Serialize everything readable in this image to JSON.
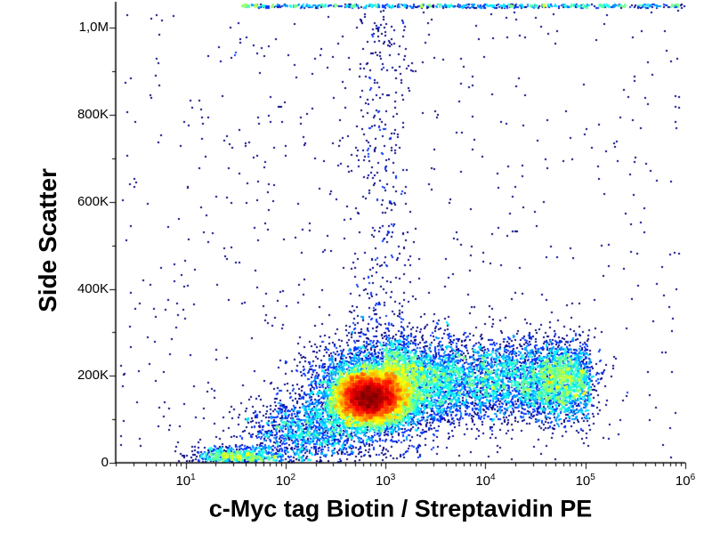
{
  "style": {
    "background": "#ffffff",
    "axis_color": "#000000",
    "text_color": "#000000",
    "colormap": "jet"
  },
  "chart_data": {
    "type": "scatter",
    "subtype": "flow-cytometry-pseudocolor-density",
    "title": "",
    "xlabel": "c-Myc tag Biotin / Streptavidin PE",
    "ylabel": "Side Scatter",
    "x_scale": "log10",
    "x_range_log10": [
      0.3,
      6.0
    ],
    "x_major_ticks": [
      {
        "base": "10",
        "exp": "1"
      },
      {
        "base": "10",
        "exp": "2"
      },
      {
        "base": "10",
        "exp": "3"
      },
      {
        "base": "10",
        "exp": "4"
      },
      {
        "base": "10",
        "exp": "5"
      },
      {
        "base": "10",
        "exp": "6"
      }
    ],
    "y_scale": "linear",
    "y_range": [
      0,
      1060000
    ],
    "y_ticks": [
      {
        "value": 0,
        "label": "0"
      },
      {
        "value": 200000,
        "label": "200K"
      },
      {
        "value": 400000,
        "label": "400K"
      },
      {
        "value": 600000,
        "label": "600K"
      },
      {
        "value": 800000,
        "label": "800K"
      },
      {
        "value": 1000000,
        "label": "1,0M"
      }
    ],
    "grid": false,
    "legend": false,
    "populations": [
      {
        "name": "debris-low-left",
        "kind": "gauss2d",
        "logx_mean": 1.5,
        "logx_sd": 0.24,
        "y_mean": 14000,
        "y_sd": 11000,
        "count": 800
      },
      {
        "name": "bridge",
        "kind": "gauss2d",
        "logx_mean": 2.2,
        "logx_sd": 0.3,
        "y_mean": 70000,
        "y_sd": 40000,
        "count": 1300
      },
      {
        "name": "main-core",
        "kind": "gauss2d",
        "logx_mean": 2.83,
        "logx_sd": 0.17,
        "y_mean": 150000,
        "y_sd": 30000,
        "count": 9000
      },
      {
        "name": "main-halo",
        "kind": "gauss2d",
        "logx_mean": 2.9,
        "logx_sd": 0.35,
        "y_mean": 170000,
        "y_sd": 60000,
        "count": 3500
      },
      {
        "name": "right-band",
        "kind": "band",
        "logx_min": 3.0,
        "logx_max": 5.05,
        "power": 1.25,
        "y_mean": 190000,
        "y_sd": 48000,
        "count": 5200
      },
      {
        "name": "right-edge-cluster",
        "kind": "gauss2d",
        "logx_mean": 4.75,
        "logx_sd": 0.18,
        "y_mean": 190000,
        "y_sd": 45000,
        "count": 1200
      },
      {
        "name": "vertical-streak",
        "kind": "streak",
        "logx_mean": 2.95,
        "logx_sd": 0.16,
        "y_min": 250000,
        "y_max": 1040000,
        "count": 380
      },
      {
        "name": "background-sparse",
        "kind": "uniform",
        "logx_min": 0.35,
        "logx_max": 5.95,
        "y_min": 0,
        "y_max": 1040000,
        "count": 650
      },
      {
        "name": "clipped-top-band",
        "kind": "clipped-top",
        "y_value": 1050000,
        "logx_min": 1.55,
        "logx_max": 6.0,
        "count": 700
      }
    ]
  }
}
